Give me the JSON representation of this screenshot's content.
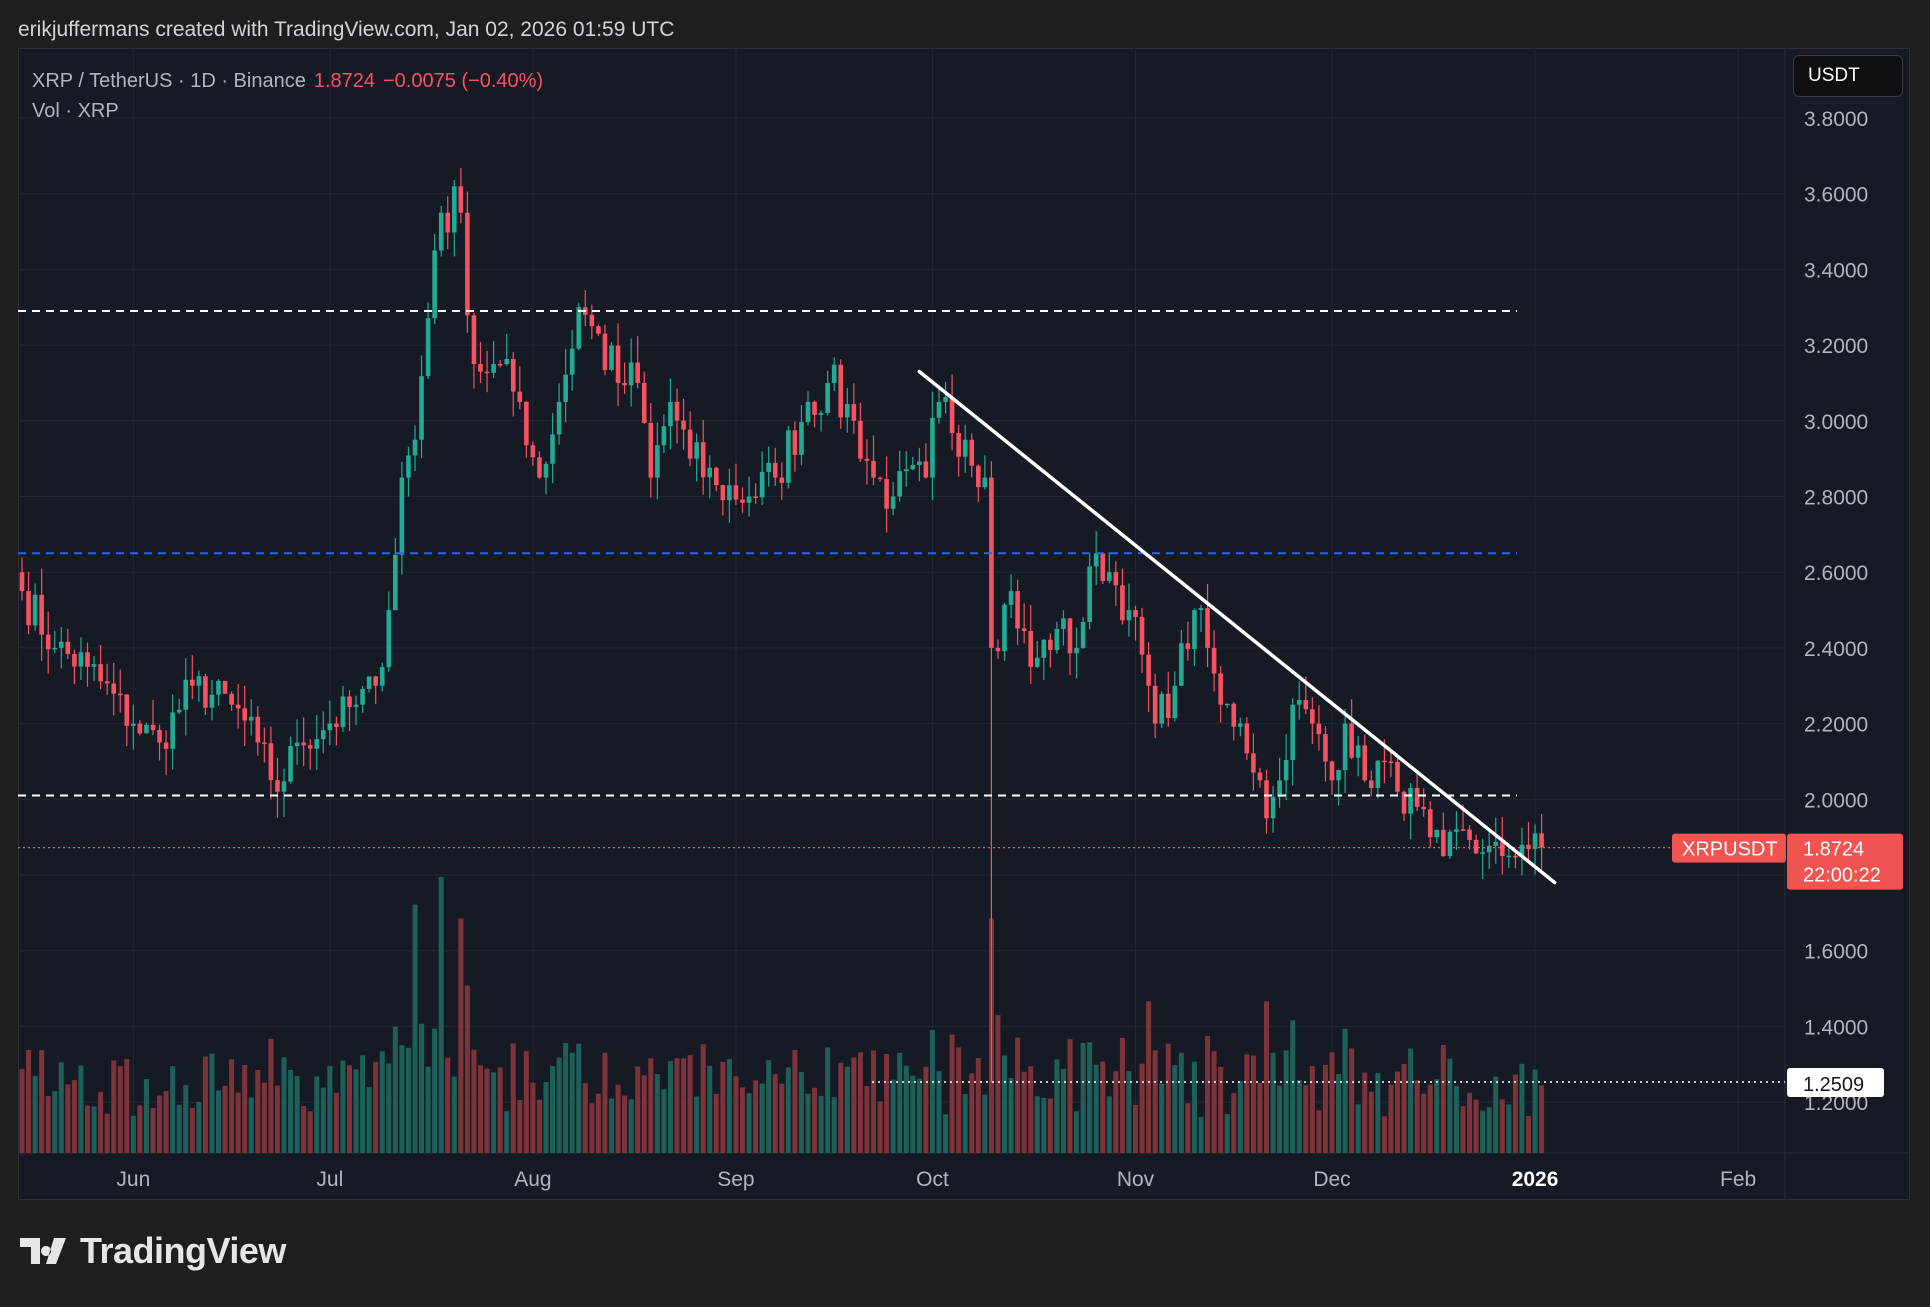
{
  "header": {
    "credit": "erikjuffermans created with TradingView.com, Jan 02, 2026 01:59 UTC"
  },
  "legend": {
    "symbol": "XRP / TetherUS · 1D · Binance",
    "price": "1.8724",
    "change": "−0.0075 (−0.40%)",
    "volume_label": "Vol · XRP"
  },
  "currency_button": "USDT",
  "price_tag": {
    "symbol": "XRPUSDT",
    "price": "1.8724",
    "countdown": "22:00:22"
  },
  "low_tag": "1.2509",
  "footer": {
    "brand": "TradingView"
  },
  "colors": {
    "up": "#22ab94",
    "down": "#f7525f",
    "vol_up": "#1d5f59",
    "vol_down": "#7d3338",
    "level": "#ffffff",
    "level_blue": "#2962ff"
  },
  "chart_data": {
    "type": "candlestick",
    "title": "XRP / TetherUS · 1D · Binance",
    "ylim": [
      1.05,
      3.9
    ],
    "y_ticks": [
      "3.8000",
      "3.6000",
      "3.4000",
      "3.2000",
      "3.0000",
      "2.8000",
      "2.6000",
      "2.4000",
      "2.2000",
      "2.0000",
      "1.6000",
      "1.4000",
      "1.2000"
    ],
    "x_ticks": [
      {
        "label": "Jun",
        "date": "2025-06-01"
      },
      {
        "label": "Jul",
        "date": "2025-07-01"
      },
      {
        "label": "Aug",
        "date": "2025-08-01"
      },
      {
        "label": "Sep",
        "date": "2025-09-01"
      },
      {
        "label": "Oct",
        "date": "2025-10-01"
      },
      {
        "label": "Nov",
        "date": "2025-11-01"
      },
      {
        "label": "Dec",
        "date": "2025-12-01"
      },
      {
        "label": "2026",
        "date": "2026-01-01"
      },
      {
        "label": "Feb",
        "date": "2026-02-01"
      }
    ],
    "start_date": "2025-05-15",
    "close_anchors": [
      [
        "2025-05-15",
        2.55
      ],
      [
        "2025-05-20",
        2.4
      ],
      [
        "2025-05-25",
        2.35
      ],
      [
        "2025-06-01",
        2.2
      ],
      [
        "2025-06-05",
        2.15
      ],
      [
        "2025-06-10",
        2.3
      ],
      [
        "2025-06-16",
        2.25
      ],
      [
        "2025-06-20",
        2.15
      ],
      [
        "2025-06-23",
        2.02
      ],
      [
        "2025-06-26",
        2.15
      ],
      [
        "2025-07-01",
        2.2
      ],
      [
        "2025-07-05",
        2.25
      ],
      [
        "2025-07-08",
        2.3
      ],
      [
        "2025-07-10",
        2.5
      ],
      [
        "2025-07-12",
        2.85
      ],
      [
        "2025-07-14",
        2.95
      ],
      [
        "2025-07-17",
        3.45
      ],
      [
        "2025-07-18",
        3.55
      ],
      [
        "2025-07-21",
        3.55
      ],
      [
        "2025-07-23",
        3.15
      ],
      [
        "2025-07-26",
        3.15
      ],
      [
        "2025-07-30",
        3.05
      ],
      [
        "2025-08-02",
        2.85
      ],
      [
        "2025-08-05",
        3.05
      ],
      [
        "2025-08-08",
        3.3
      ],
      [
        "2025-08-10",
        3.25
      ],
      [
        "2025-08-14",
        3.1
      ],
      [
        "2025-08-17",
        3.1
      ],
      [
        "2025-08-19",
        2.85
      ],
      [
        "2025-08-22",
        3.05
      ],
      [
        "2025-08-25",
        2.9
      ],
      [
        "2025-08-29",
        2.83
      ],
      [
        "2025-09-03",
        2.8
      ],
      [
        "2025-09-07",
        2.85
      ],
      [
        "2025-09-12",
        3.05
      ],
      [
        "2025-09-15",
        3.1
      ],
      [
        "2025-09-19",
        3.0
      ],
      [
        "2025-09-22",
        2.85
      ],
      [
        "2025-09-25",
        2.8
      ],
      [
        "2025-09-30",
        2.85
      ],
      [
        "2025-10-02",
        3.05
      ],
      [
        "2025-10-06",
        2.95
      ],
      [
        "2025-10-09",
        2.85
      ],
      [
        "2025-10-10",
        2.4
      ],
      [
        "2025-10-13",
        2.55
      ],
      [
        "2025-10-16",
        2.35
      ],
      [
        "2025-10-20",
        2.45
      ],
      [
        "2025-10-23",
        2.4
      ],
      [
        "2025-10-26",
        2.65
      ],
      [
        "2025-10-28",
        2.6
      ],
      [
        "2025-10-31",
        2.5
      ],
      [
        "2025-11-03",
        2.3
      ],
      [
        "2025-11-04",
        2.2
      ],
      [
        "2025-11-07",
        2.3
      ],
      [
        "2025-11-10",
        2.5
      ],
      [
        "2025-11-12",
        2.4
      ],
      [
        "2025-11-14",
        2.25
      ],
      [
        "2025-11-17",
        2.2
      ],
      [
        "2025-11-20",
        2.05
      ],
      [
        "2025-11-21",
        1.95
      ],
      [
        "2025-11-23",
        2.05
      ],
      [
        "2025-11-25",
        2.25
      ],
      [
        "2025-11-28",
        2.2
      ],
      [
        "2025-12-01",
        2.05
      ],
      [
        "2025-12-03",
        2.2
      ],
      [
        "2025-12-06",
        2.05
      ],
      [
        "2025-12-09",
        2.1
      ],
      [
        "2025-12-11",
        2.02
      ],
      [
        "2025-12-14",
        1.98
      ],
      [
        "2025-12-16",
        1.9
      ],
      [
        "2025-12-18",
        1.85
      ],
      [
        "2025-12-21",
        1.92
      ],
      [
        "2025-12-24",
        1.86
      ],
      [
        "2025-12-27",
        1.85
      ],
      [
        "2025-12-30",
        1.88
      ],
      [
        "2026-01-02",
        1.8724
      ]
    ],
    "flash_crash": {
      "date": "2025-10-10",
      "low": 1.2509
    },
    "volume_spikes": [
      [
        "2025-07-14",
        0.9
      ],
      [
        "2025-07-18",
        1.0
      ],
      [
        "2025-07-21",
        0.85
      ],
      [
        "2025-10-10",
        0.85
      ],
      [
        "2025-10-11",
        0.5
      ],
      [
        "2025-11-03",
        0.55
      ],
      [
        "2025-11-21",
        0.55
      ]
    ],
    "horizontal_levels": [
      {
        "price": 3.29,
        "style": "white-dashed"
      },
      {
        "price": 2.65,
        "style": "blue-dashed"
      },
      {
        "price": 2.01,
        "style": "white-dashed"
      }
    ],
    "trendline": {
      "from": [
        "2025-09-29",
        3.13
      ],
      "to": [
        "2026-01-04",
        1.78
      ]
    },
    "last_price": 1.8724
  }
}
